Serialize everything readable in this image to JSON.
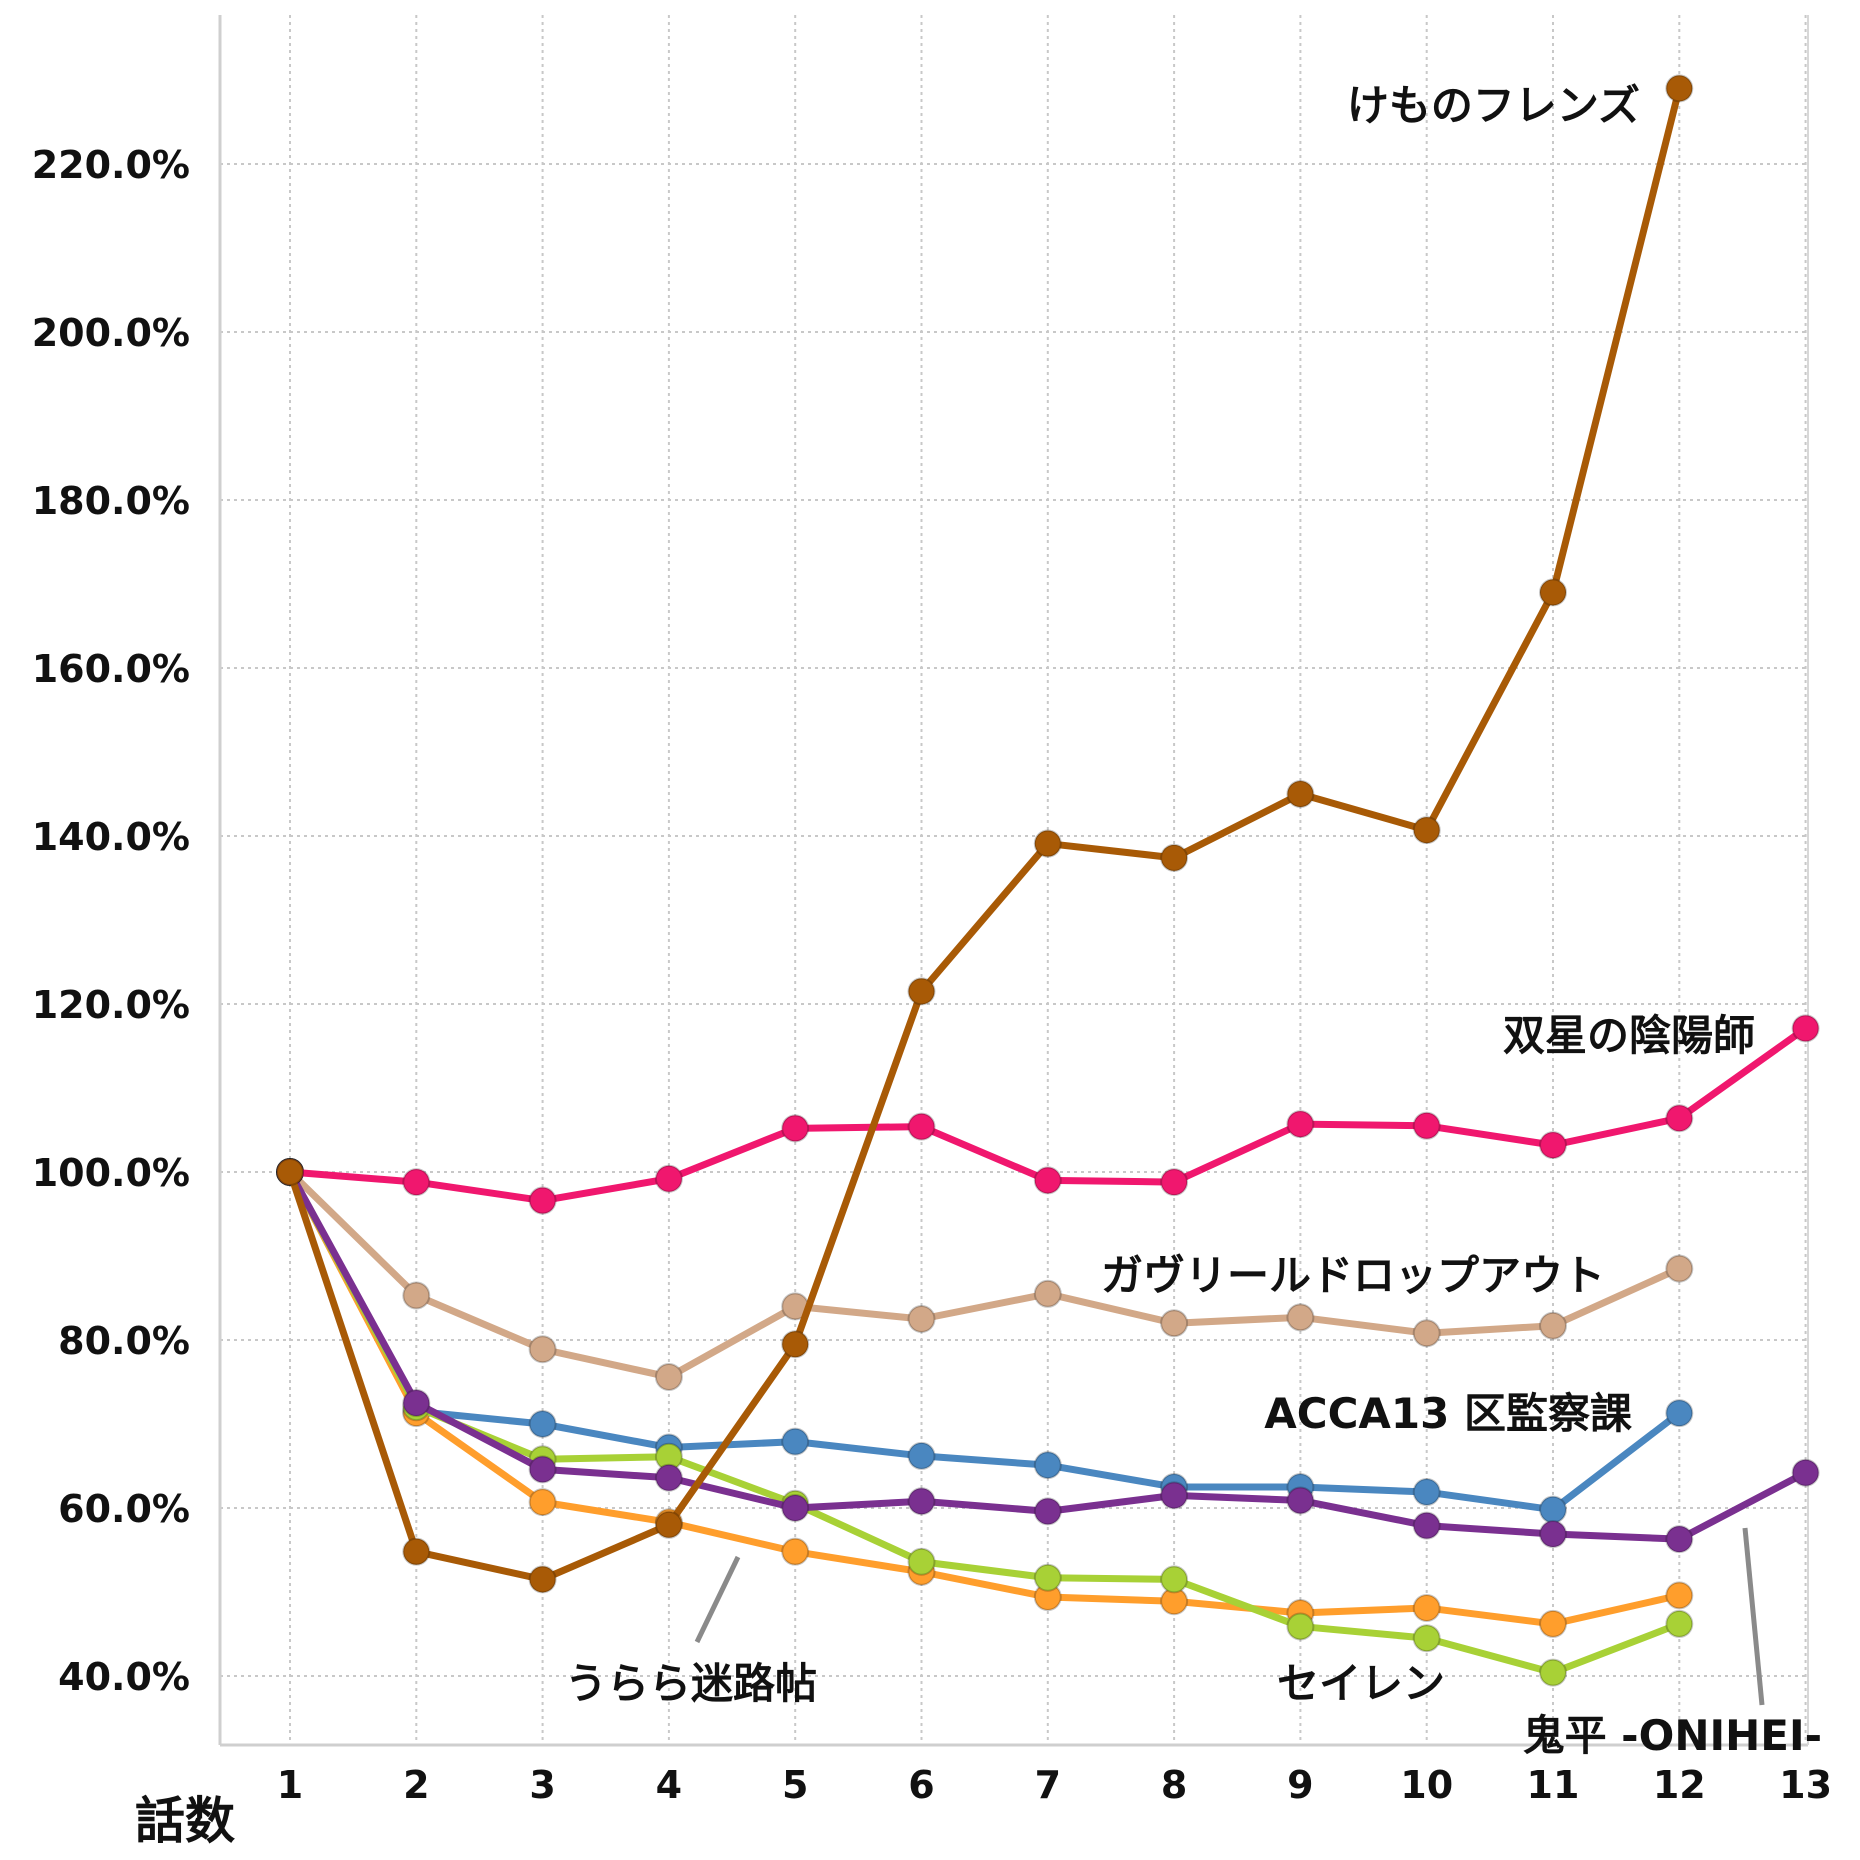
{
  "chart_data": {
    "type": "line",
    "xlabel": "話数",
    "x": [
      1,
      2,
      3,
      4,
      5,
      6,
      7,
      8,
      9,
      10,
      11,
      12,
      13
    ],
    "ylim": [
      30,
      245
    ],
    "yticks": [
      40,
      60,
      80,
      100,
      120,
      140,
      160,
      180,
      200,
      220
    ],
    "ytick_labels": [
      "40.0%",
      "60.0%",
      "80.0%",
      "100.0%",
      "120.0%",
      "140.0%",
      "160.0%",
      "180.0%",
      "200.0%",
      "220.0%"
    ],
    "grid": true,
    "series": [
      {
        "name": "ガヴリールドロップアウト",
        "color": "#d2a888",
        "values": [
          100,
          85.3,
          78.9,
          75.6,
          84,
          82.5,
          85.5,
          82,
          82.7,
          80.8,
          81.7,
          88.5,
          null
        ]
      },
      {
        "name": "ACCA13 区監察課",
        "color": "#4a87c0",
        "values": [
          100,
          71.5,
          70,
          67.2,
          67.9,
          66.2,
          65.1,
          62.5,
          62.5,
          61.9,
          59.8,
          71.3,
          null
        ]
      },
      {
        "name": "うらら迷路帖",
        "color": "#ff9e2c",
        "values": [
          100,
          71.3,
          60.7,
          58.3,
          54.8,
          52.4,
          49.4,
          48.9,
          47.5,
          48.1,
          46.2,
          49.6,
          null
        ]
      },
      {
        "name": "セイレン",
        "color": "#a8d136",
        "values": [
          100,
          72,
          65.8,
          66.1,
          60.5,
          53.6,
          51.7,
          51.5,
          45.9,
          44.5,
          40.4,
          46.2,
          null
        ]
      },
      {
        "name": "鬼平 -ONIHEI-",
        "color": "#7a3090",
        "values": [
          100,
          72.5,
          64.6,
          63.6,
          60,
          60.8,
          59.6,
          61.5,
          60.9,
          57.9,
          56.9,
          56.3,
          64.2
        ]
      },
      {
        "name": "双星の陰陽師",
        "color": "#f0176e",
        "values": [
          100,
          98.8,
          96.6,
          99.2,
          105.2,
          105.4,
          99,
          98.8,
          105.7,
          105.5,
          103.2,
          106.4,
          117.1
        ]
      },
      {
        "name": "けものフレンズ",
        "color": "#a85a06",
        "values": [
          100,
          54.8,
          51.5,
          58,
          79.5,
          121.5,
          139.1,
          137.4,
          145,
          140.7,
          169,
          229,
          null
        ]
      }
    ],
    "labels": [
      {
        "text": "けものフレンズ"
      },
      {
        "text": "双星の陰陽師"
      },
      {
        "text": "ガヴリールドロップアウト"
      },
      {
        "text": "ACCA13 区監察課"
      },
      {
        "text": "うらら迷路帖"
      },
      {
        "text": "セイレン"
      },
      {
        "text": "鬼平 -ONIHEI-"
      }
    ]
  }
}
